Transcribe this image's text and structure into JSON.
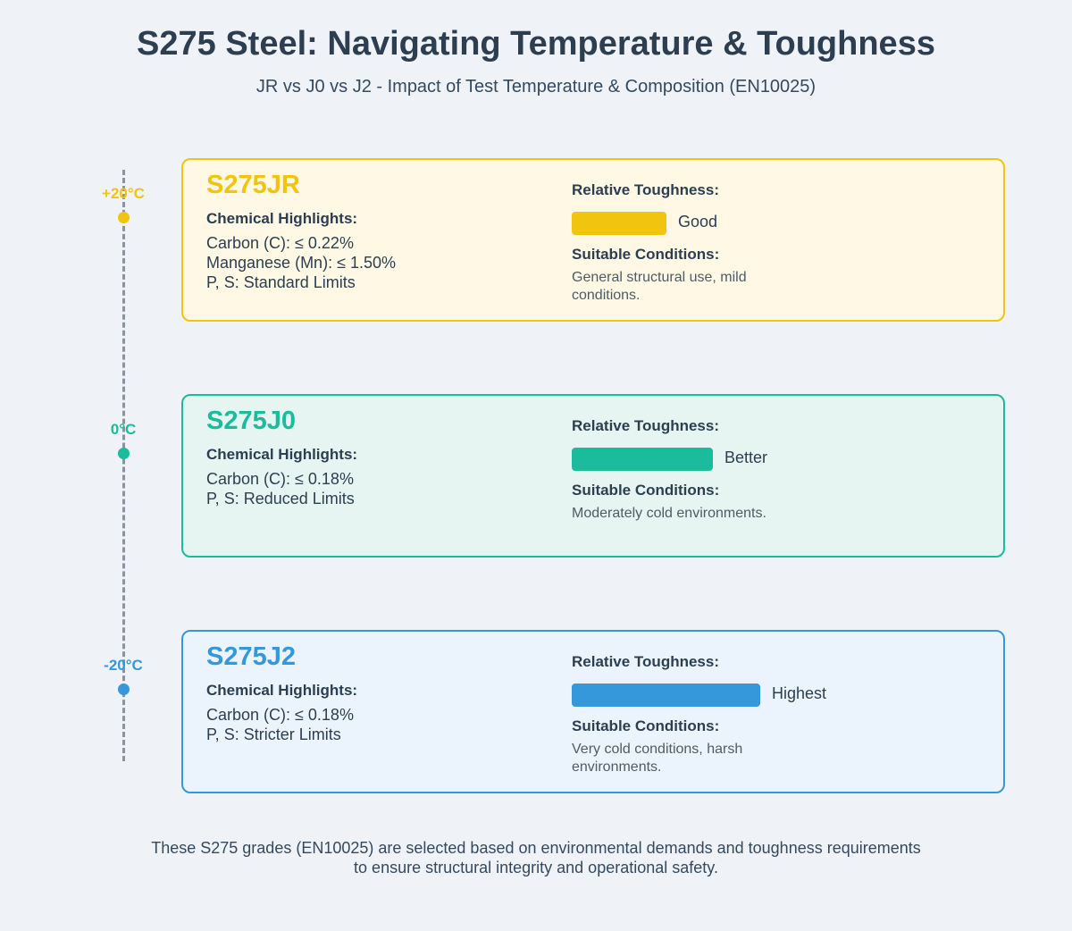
{
  "header": {
    "title": "S275 Steel: Navigating Temperature & Toughness",
    "subtitle": "JR vs J0 vs J2 - Impact of Test Temperature & Composition (EN10025)"
  },
  "colors": {
    "jr": "#f1c40f",
    "j0": "#1abc9c",
    "j2": "#3498db",
    "timeline": "#8a949e"
  },
  "grades": [
    {
      "temperature": "+20°C",
      "name": "S275JR",
      "chem_heading": "Chemical Highlights:",
      "chemistry": [
        "Carbon (C): ≤ 0.22%",
        "Manganese (Mn): ≤ 1.50%",
        "P, S: Standard Limits"
      ],
      "toughness_heading": "Relative Toughness:",
      "toughness_level": 0.5,
      "toughness_label": "Good",
      "conditions_heading": "Suitable Conditions:",
      "conditions": "General structural use, mild conditions."
    },
    {
      "temperature": "0°C",
      "name": "S275J0",
      "chem_heading": "Chemical Highlights:",
      "chemistry": [
        "Carbon (C): ≤ 0.18%",
        "P, S: Reduced Limits"
      ],
      "toughness_heading": "Relative Toughness:",
      "toughness_level": 0.75,
      "toughness_label": "Better",
      "conditions_heading": "Suitable Conditions:",
      "conditions": "Moderately cold environments."
    },
    {
      "temperature": "-20°C",
      "name": "S275J2",
      "chem_heading": "Chemical Highlights:",
      "chemistry": [
        "Carbon (C): ≤ 0.18%",
        "P, S: Stricter Limits"
      ],
      "toughness_heading": "Relative Toughness:",
      "toughness_level": 1.0,
      "toughness_label": "Highest",
      "conditions_heading": "Suitable Conditions:",
      "conditions": "Very cold conditions, harsh environments."
    }
  ],
  "footer": {
    "line1": "These S275 grades (EN10025) are selected based on environmental demands and toughness requirements",
    "line2": "to ensure structural integrity and operational safety."
  }
}
